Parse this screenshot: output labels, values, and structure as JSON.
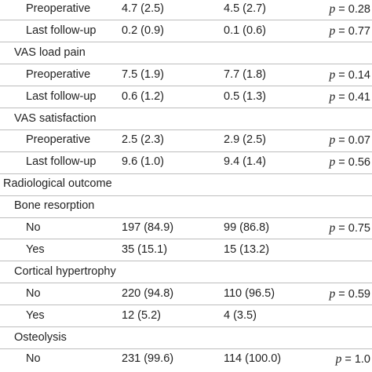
{
  "rows": [
    {
      "label": "Preoperative",
      "level": 2,
      "col1": "4.7 (2.5)",
      "col2": "4.5 (2.7)",
      "p_symbol": "p",
      "p_rest": " = 0.28",
      "sep": true
    },
    {
      "label": "Last follow-up",
      "level": 2,
      "col1": "0.2 (0.9)",
      "col2": "0.1 (0.6)",
      "p_symbol": "p",
      "p_rest": " = 0.77",
      "sep": true
    },
    {
      "label": "VAS load pain",
      "level": 1,
      "col1": "",
      "col2": "",
      "p_symbol": "",
      "p_rest": "",
      "sep": true
    },
    {
      "label": "Preoperative",
      "level": 2,
      "col1": "7.5 (1.9)",
      "col2": "7.7 (1.8)",
      "p_symbol": "p",
      "p_rest": " = 0.14",
      "sep": true
    },
    {
      "label": "Last follow-up",
      "level": 2,
      "col1": "0.6 (1.2)",
      "col2": "0.5 (1.3)",
      "p_symbol": "p",
      "p_rest": " = 0.41",
      "sep": true
    },
    {
      "label": "VAS satisfaction",
      "level": 1,
      "col1": "",
      "col2": "",
      "p_symbol": "",
      "p_rest": "",
      "sep": true
    },
    {
      "label": "Preoperative",
      "level": 2,
      "col1": "2.5 (2.3)",
      "col2": "2.9 (2.5)",
      "p_symbol": "p",
      "p_rest": " = 0.07",
      "sep": true
    },
    {
      "label": "Last follow-up",
      "level": 2,
      "col1": "9.6 (1.0)",
      "col2": "9.4 (1.4)",
      "p_symbol": "p",
      "p_rest": " = 0.56",
      "sep": true
    },
    {
      "label": "Radiological outcome",
      "level": 0,
      "col1": "",
      "col2": "",
      "p_symbol": "",
      "p_rest": "",
      "sep": true
    },
    {
      "label": "Bone resorption",
      "level": 1,
      "col1": "",
      "col2": "",
      "p_symbol": "",
      "p_rest": "",
      "sep": true
    },
    {
      "label": "No",
      "level": 2,
      "col1": "197 (84.9)",
      "col2": "99 (86.8)",
      "p_symbol": "p",
      "p_rest": " = 0.75",
      "sep": true
    },
    {
      "label": "Yes",
      "level": 2,
      "col1": "35 (15.1)",
      "col2": "15 (13.2)",
      "p_symbol": "",
      "p_rest": "",
      "sep": true
    },
    {
      "label": "Cortical hypertrophy",
      "level": 1,
      "col1": "",
      "col2": "",
      "p_symbol": "",
      "p_rest": "",
      "sep": true
    },
    {
      "label": "No",
      "level": 2,
      "col1": "220 (94.8)",
      "col2": "110 (96.5)",
      "p_symbol": "p",
      "p_rest": " = 0.59",
      "sep": true
    },
    {
      "label": "Yes",
      "level": 2,
      "col1": "12 (5.2)",
      "col2": "4 (3.5)",
      "p_symbol": "",
      "p_rest": "",
      "sep": true
    },
    {
      "label": "Osteolysis",
      "level": 1,
      "col1": "",
      "col2": "",
      "p_symbol": "",
      "p_rest": "",
      "sep": true
    },
    {
      "label": "No",
      "level": 2,
      "col1": "231 (99.6)",
      "col2": "114 (100.0)",
      "p_symbol": "p",
      "p_rest": " = 1.0",
      "sep": false
    }
  ]
}
